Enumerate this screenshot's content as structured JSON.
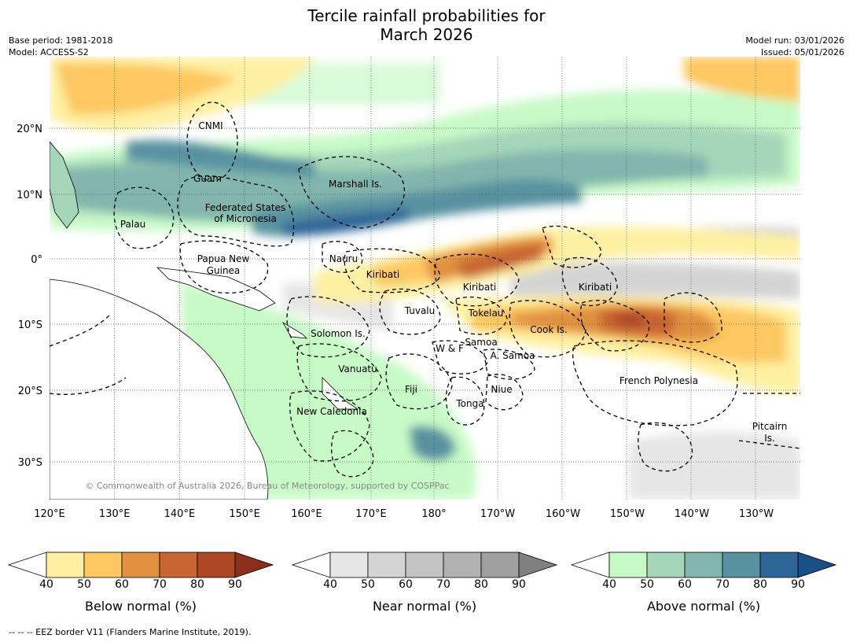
{
  "title_line1": "Tercile rainfall probabilities for",
  "title_line2": "March 2026",
  "meta_left": [
    "Base period: 1981-2018",
    "Model: ACCESS-S2"
  ],
  "meta_right": [
    "Model run: 03/01/2026",
    "Issued: 05/01/2026"
  ],
  "copyright": "© Commonwealth of Australia 2026, Bureau of Meteorology, supported by COSPPac",
  "lon_labels": [
    "120°E",
    "130°E",
    "140°E",
    "150°E",
    "160°E",
    "170°E",
    "180°",
    "170°W",
    "160°W",
    "150°W",
    "140°W",
    "130°W"
  ],
  "lat_labels": [
    "20°N",
    "10°N",
    "0°",
    "10°S",
    "20°S",
    "30°S"
  ],
  "regions": [
    {
      "name": "CNMI"
    },
    {
      "name": "Guam"
    },
    {
      "name": "Marshall Is."
    },
    {
      "name": "Federated States"
    },
    {
      "name": "of Micronesia"
    },
    {
      "name": "Palau"
    },
    {
      "name": "Papua New"
    },
    {
      "name": "Guinea"
    },
    {
      "name": "Nauru"
    },
    {
      "name": "Kiribati"
    },
    {
      "name": "Kiribati"
    },
    {
      "name": "Kiribati"
    },
    {
      "name": "Tuvalu"
    },
    {
      "name": "Tokelau"
    },
    {
      "name": "Cook Is."
    },
    {
      "name": "Solomon Is."
    },
    {
      "name": "Samoa"
    },
    {
      "name": "W & F"
    },
    {
      "name": "A. Samoa"
    },
    {
      "name": "Vanuatu"
    },
    {
      "name": "Fiji"
    },
    {
      "name": "Niue"
    },
    {
      "name": "French Polynesia"
    },
    {
      "name": "Tonga"
    },
    {
      "name": "New Caledonia"
    },
    {
      "name": "Pitcairn"
    },
    {
      "name": "Is."
    }
  ],
  "colorbars": [
    {
      "label": "Below normal (%)",
      "ticks": [
        "40",
        "50",
        "60",
        "70",
        "80",
        "90"
      ],
      "colors": [
        "#ffffff",
        "#fef0a2",
        "#fdc862",
        "#e0903f",
        "#c96532",
        "#ad4726",
        "#8b2f1c"
      ]
    },
    {
      "label": "Near normal (%)",
      "ticks": [
        "40",
        "50",
        "60",
        "70",
        "80",
        "90"
      ],
      "colors": [
        "#ffffff",
        "#e6e6e6",
        "#d4d4d4",
        "#c4c4c4",
        "#b2b2b2",
        "#a0a0a0",
        "#808080"
      ]
    },
    {
      "label": "Above normal (%)",
      "ticks": [
        "40",
        "50",
        "60",
        "70",
        "80",
        "90"
      ],
      "colors": [
        "#ffffff",
        "#c8fac8",
        "#a6d6b9",
        "#82b5ad",
        "#5892a1",
        "#2e6597",
        "#184f86"
      ]
    }
  ],
  "footnote": "--  --  -- EEZ border V11 (Flanders Marine Institute, 2019)."
}
